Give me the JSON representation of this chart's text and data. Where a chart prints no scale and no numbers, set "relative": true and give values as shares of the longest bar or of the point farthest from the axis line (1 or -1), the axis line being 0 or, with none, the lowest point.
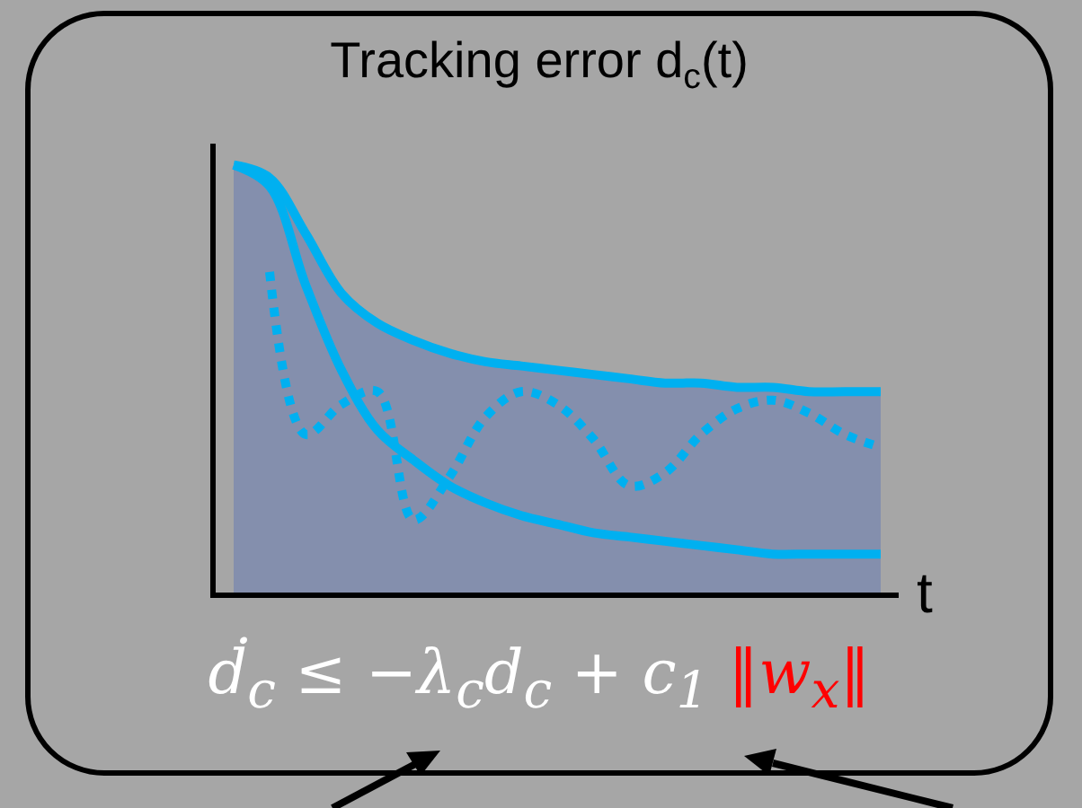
{
  "chart_data": {
    "type": "line",
    "relative": true,
    "title": "Tracking error d$_{c}$(t)",
    "xlabel": "t",
    "categories": [
      null,
      null,
      null,
      null,
      null,
      null,
      null,
      null,
      null,
      null,
      null,
      null,
      null,
      null,
      null,
      null,
      null,
      null,
      null
    ],
    "legend": false,
    "series": [
      {
        "type": "area",
        "color": "#00b0f0",
        "line_style": "solid",
        "values": [
          1.0,
          0.97,
          0.84,
          0.7,
          0.63,
          0.59,
          0.56,
          0.54,
          0.53,
          0.52,
          0.51,
          0.5,
          0.49,
          0.49,
          0.48,
          0.48,
          0.47,
          0.47,
          0.47
        ]
      },
      {
        "color": "#00b0f0",
        "line_style": "solid",
        "values": [
          1.0,
          0.95,
          0.72,
          0.52,
          0.38,
          0.31,
          0.25,
          0.21,
          0.18,
          0.16,
          0.14,
          0.13,
          0.12,
          0.11,
          0.1,
          0.09,
          0.09,
          0.09,
          0.09
        ]
      },
      {
        "color": "#00b0f0",
        "line_style": "dotted",
        "values": [
          null,
          0.75,
          0.37,
          0.44,
          0.47,
          0.17,
          0.27,
          0.41,
          0.47,
          0.44,
          0.36,
          0.25,
          0.28,
          0.37,
          0.43,
          0.45,
          0.42,
          0.37,
          0.34
        ]
      }
    ],
    "annotations": [
      "ḋ$_{c}$ ≤ −λ$_{c}$d$_{c}$ + c$_{1}$",
      "‖w$_{x}$‖"
    ]
  }
}
